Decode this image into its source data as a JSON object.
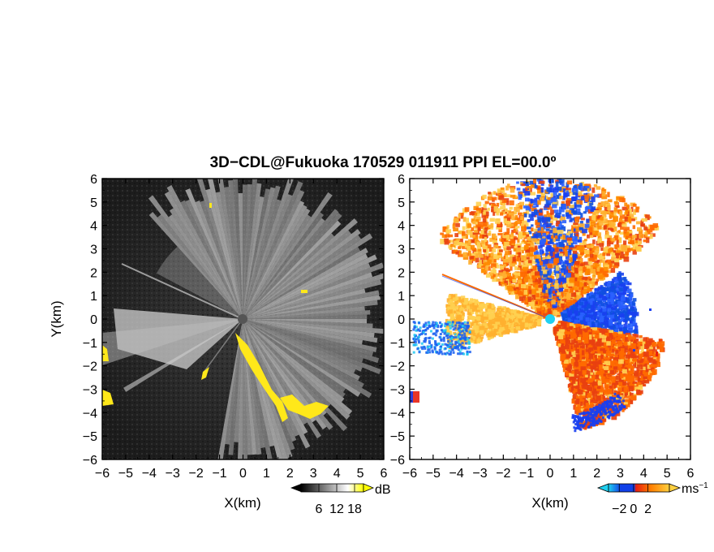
{
  "title": "3D−CDL@Fukuoka 170529 011911 PPI EL=00.0º",
  "chart_data": [
    {
      "type": "heatmap",
      "panel": "left",
      "quantity": "backscatter intensity",
      "xlabel": "X(km)",
      "ylabel": "Y(km)",
      "xlim": [
        -6,
        6
      ],
      "ylim": [
        -6,
        6
      ],
      "xticks": [
        "−6",
        "−5",
        "−4",
        "−3",
        "−2",
        "−1",
        "0",
        "1",
        "2",
        "3",
        "4",
        "5",
        "6"
      ],
      "yticks": [
        "6",
        "5",
        "4",
        "3",
        "2",
        "1",
        "0",
        "−1",
        "−2",
        "−3",
        "−4",
        "−5",
        "−6"
      ],
      "colorbar": {
        "unit": "dB",
        "ticks": [
          "6",
          "12",
          "18"
        ],
        "tick_values": [
          6,
          12,
          18
        ],
        "range": [
          0,
          21
        ],
        "colors": [
          "#000000",
          "#ffffff",
          "#ffff00"
        ]
      },
      "radar_origin": [
        0,
        0
      ],
      "highlight_color": "#ffe81a"
    },
    {
      "type": "heatmap",
      "panel": "right",
      "quantity": "radial velocity",
      "xlabel": "X(km)",
      "xlim": [
        -6,
        6
      ],
      "ylim": [
        -6,
        6
      ],
      "xticks": [
        "−6",
        "−5",
        "−4",
        "−3",
        "−2",
        "−1",
        "0",
        "1",
        "2",
        "3",
        "4",
        "5",
        "6"
      ],
      "yticks": [
        "6",
        "5",
        "4",
        "3",
        "2",
        "1",
        "0",
        "−1",
        "−2",
        "−3",
        "−4",
        "−5",
        "−6"
      ],
      "colorbar": {
        "unit": "ms",
        "unit_exponent": "−1",
        "ticks": [
          "−2",
          "0",
          "2"
        ],
        "tick_values": [
          -2,
          0,
          2
        ],
        "range": [
          -3.5,
          5
        ],
        "colors": [
          "#20d0f0",
          "#1040e8",
          "#e82010",
          "#ff8000",
          "#ffd040"
        ]
      },
      "radar_origin": [
        0,
        0
      ]
    }
  ]
}
